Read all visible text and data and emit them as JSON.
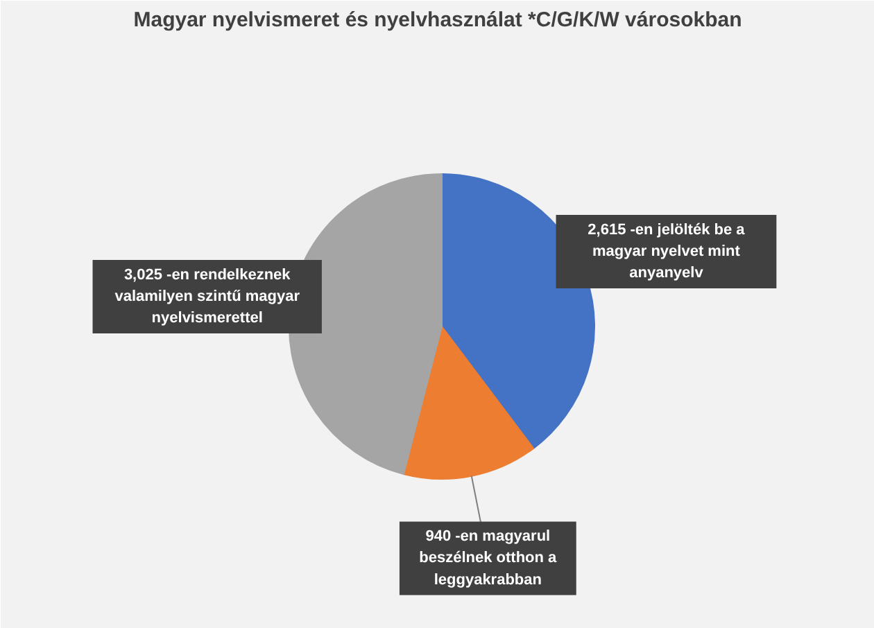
{
  "chart_data": {
    "type": "pie",
    "title": "Magyar nyelvismeret és nyelvhasználat *C/G/K/W városokban",
    "categories": [
      null,
      null,
      null
    ],
    "values": [
      2615,
      940,
      3025
    ],
    "colors": [
      "#4472c4",
      "#ed7d31",
      "#a5a5a5"
    ],
    "value_labels": [
      "2,615 -en jelölték be a\nmagyar nyelvet mint\nanyanyelv",
      "940 -en magyarul\nbeszélnek otthon a\nleggyakrabban",
      "3,025 -en rendelkeznek\nvalamilyen szintű magyar\nnyelvismerettel"
    ]
  }
}
